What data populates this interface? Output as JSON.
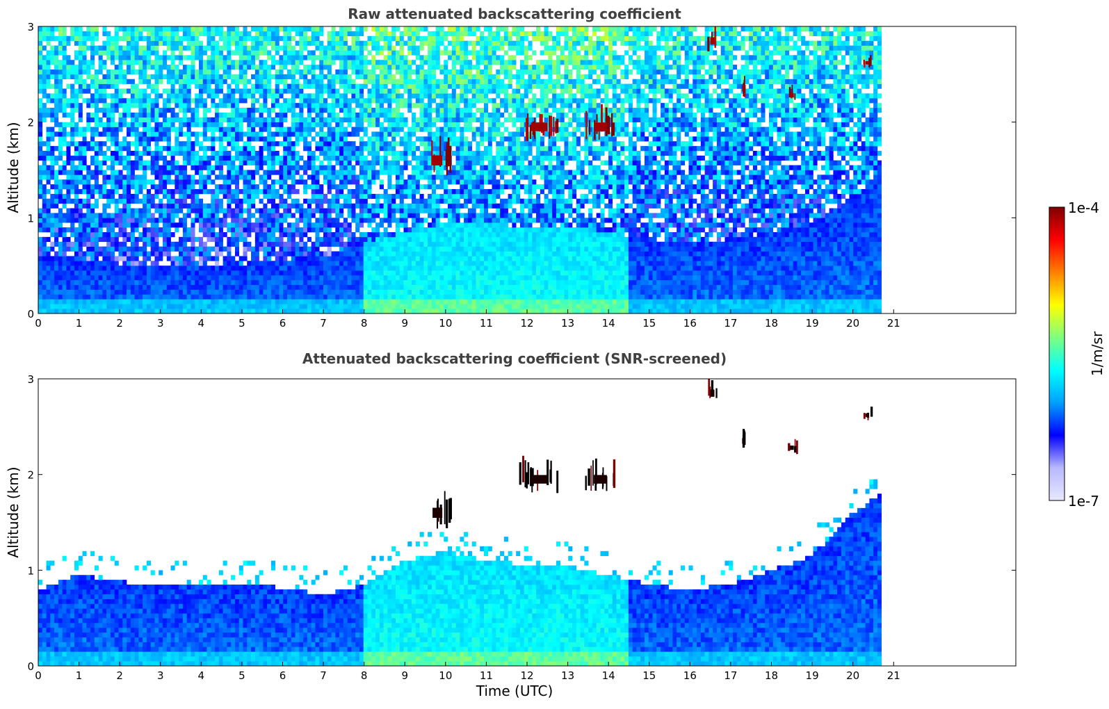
{
  "chart_data": [
    {
      "type": "heatmap",
      "title": "Raw attenuated backscattering coefficient",
      "xlabel": "",
      "ylabel": "Altitude (km)",
      "xlim": [
        0,
        24
      ],
      "ylim": [
        0,
        3
      ],
      "x_ticks": [
        "0",
        "1",
        "2",
        "3",
        "4",
        "5",
        "6",
        "7",
        "8",
        "9",
        "10",
        "11",
        "12",
        "13",
        "14",
        "15",
        "16",
        "17",
        "18",
        "19",
        "20",
        "21"
      ],
      "y_ticks": [
        "0",
        "1",
        "2",
        "3"
      ],
      "data_end_time": 20.7,
      "noise_screened": false,
      "boundary_layer": [
        {
          "t": 0,
          "top": 0.62
        },
        {
          "t": 1,
          "top": 0.58
        },
        {
          "t": 2,
          "top": 0.52
        },
        {
          "t": 3,
          "top": 0.48
        },
        {
          "t": 4,
          "top": 0.5
        },
        {
          "t": 5,
          "top": 0.52
        },
        {
          "t": 6,
          "top": 0.55
        },
        {
          "t": 7,
          "top": 0.6
        },
        {
          "t": 8,
          "top": 0.75
        },
        {
          "t": 9,
          "top": 0.85
        },
        {
          "t": 10,
          "top": 0.95
        },
        {
          "t": 11,
          "top": 0.95
        },
        {
          "t": 12,
          "top": 0.9
        },
        {
          "t": 13,
          "top": 0.92
        },
        {
          "t": 14,
          "top": 0.85
        },
        {
          "t": 15,
          "top": 0.78
        },
        {
          "t": 16,
          "top": 0.75
        },
        {
          "t": 17,
          "top": 0.78
        },
        {
          "t": 18,
          "top": 0.85
        },
        {
          "t": 19,
          "top": 0.95
        },
        {
          "t": 20,
          "top": 1.2
        },
        {
          "t": 20.7,
          "top": 1.5
        }
      ],
      "clouds": [
        {
          "t": 9.8,
          "alt": 1.6,
          "width": 0.6,
          "height": 0.35
        },
        {
          "t": 12.3,
          "alt": 1.95,
          "width": 1.0,
          "height": 0.3
        },
        {
          "t": 13.8,
          "alt": 1.95,
          "width": 0.8,
          "height": 0.3
        },
        {
          "t": 16.55,
          "alt": 2.85,
          "width": 0.25,
          "height": 0.25
        },
        {
          "t": 17.3,
          "alt": 2.35,
          "width": 0.1,
          "height": 0.2
        },
        {
          "t": 18.5,
          "alt": 2.28,
          "width": 0.25,
          "height": 0.15
        },
        {
          "t": 20.35,
          "alt": 2.62,
          "width": 0.2,
          "height": 0.12
        }
      ]
    },
    {
      "type": "heatmap",
      "title": "Attenuated backscattering coefficient (SNR-screened)",
      "xlabel": "Time (UTC)",
      "ylabel": "Altitude (km)",
      "xlim": [
        0,
        24
      ],
      "ylim": [
        0,
        3
      ],
      "x_ticks": [
        "0",
        "1",
        "2",
        "3",
        "4",
        "5",
        "6",
        "7",
        "8",
        "9",
        "10",
        "11",
        "12",
        "13",
        "14",
        "15",
        "16",
        "17",
        "18",
        "19",
        "20",
        "21"
      ],
      "y_ticks": [
        "0",
        "1",
        "2",
        "3"
      ],
      "data_end_time": 20.7,
      "noise_screened": true,
      "boundary_layer": [
        {
          "t": 0,
          "top": 0.8
        },
        {
          "t": 1,
          "top": 0.95
        },
        {
          "t": 2,
          "top": 0.88
        },
        {
          "t": 3,
          "top": 0.85
        },
        {
          "t": 4,
          "top": 0.85
        },
        {
          "t": 5,
          "top": 0.85
        },
        {
          "t": 6,
          "top": 0.82
        },
        {
          "t": 7,
          "top": 0.75
        },
        {
          "t": 8,
          "top": 0.85
        },
        {
          "t": 9,
          "top": 1.1
        },
        {
          "t": 10,
          "top": 1.2
        },
        {
          "t": 11,
          "top": 1.1
        },
        {
          "t": 12,
          "top": 1.05
        },
        {
          "t": 13,
          "top": 1.05
        },
        {
          "t": 14,
          "top": 0.95
        },
        {
          "t": 15,
          "top": 0.85
        },
        {
          "t": 16,
          "top": 0.8
        },
        {
          "t": 17,
          "top": 0.85
        },
        {
          "t": 18,
          "top": 1.0
        },
        {
          "t": 19,
          "top": 1.15
        },
        {
          "t": 20,
          "top": 1.6
        },
        {
          "t": 20.7,
          "top": 1.8
        }
      ],
      "clouds": [
        {
          "t": 9.8,
          "alt": 1.6,
          "width": 0.6,
          "height": 0.35
        },
        {
          "t": 12.3,
          "alt": 1.95,
          "width": 1.0,
          "height": 0.3
        },
        {
          "t": 13.8,
          "alt": 1.95,
          "width": 0.8,
          "height": 0.3
        },
        {
          "t": 16.55,
          "alt": 2.85,
          "width": 0.25,
          "height": 0.25
        },
        {
          "t": 17.3,
          "alt": 2.35,
          "width": 0.1,
          "height": 0.2
        },
        {
          "t": 18.5,
          "alt": 2.28,
          "width": 0.25,
          "height": 0.15
        },
        {
          "t": 20.35,
          "alt": 2.62,
          "width": 0.2,
          "height": 0.12
        }
      ]
    }
  ],
  "colorbar": {
    "label": "1/m/sr",
    "max_label": "1e-4",
    "min_label": "1e-7",
    "scale": "log",
    "colormap": "jet",
    "colors": [
      "#e8e8ff",
      "#b8b8ff",
      "#0000ff",
      "#00a0ff",
      "#00ffff",
      "#7fff7f",
      "#ffff00",
      "#ff8000",
      "#ff0000",
      "#800000"
    ]
  }
}
